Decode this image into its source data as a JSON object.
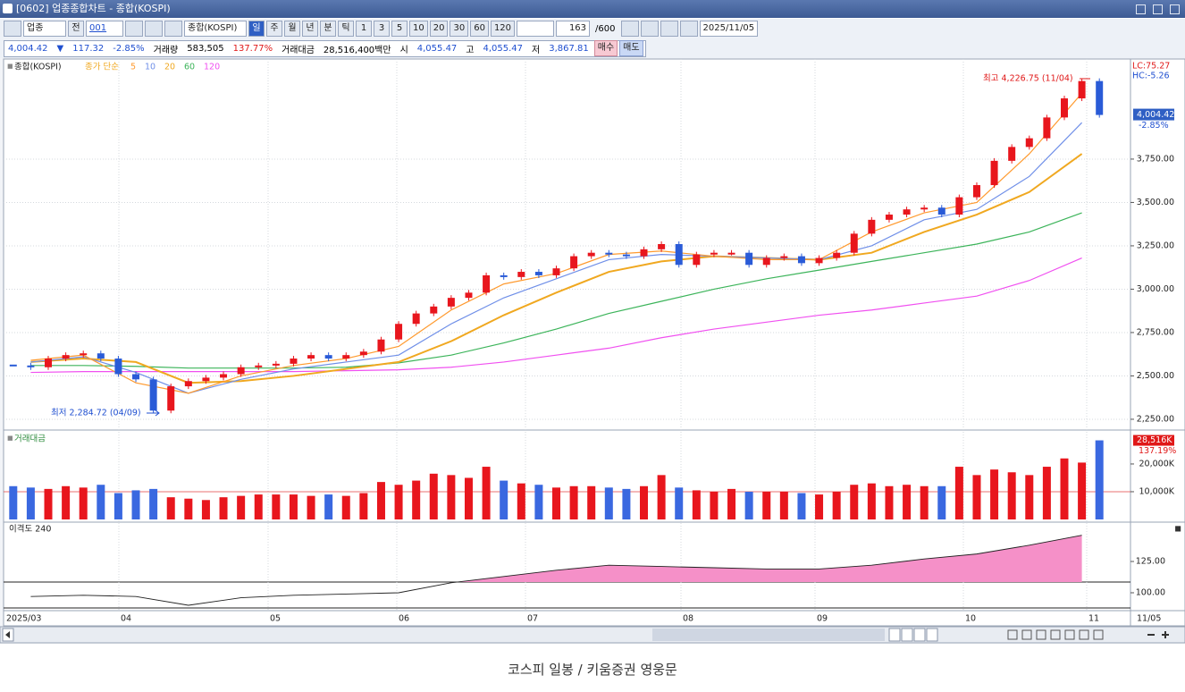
{
  "window": {
    "title": "[0602] 업종종합차트 - 종합(KOSPI)"
  },
  "toolbar": {
    "market": "업종",
    "scope": "전",
    "code": "001",
    "name": "종합(KOSPI)",
    "periods": [
      "일",
      "주",
      "월",
      "년",
      "분",
      "틱"
    ],
    "intervals": [
      "1",
      "3",
      "5",
      "10",
      "20",
      "30",
      "60",
      "120"
    ],
    "count": "163",
    "max": "/600",
    "date": "2025/11/05"
  },
  "quote": {
    "last": "4,004.42",
    "arrow": "▼",
    "change": "117.32",
    "rate": "-2.85%",
    "volume_label": "거래량",
    "volume": "583,505",
    "volume_rate": "137.77%",
    "amount_label": "거래대금",
    "amount": "28,516,400백만",
    "open_label": "시",
    "open": "4,055.47",
    "high_label": "고",
    "high": "4,055.47",
    "low_label": "저",
    "low": "3,867.81",
    "buy": "매수",
    "sell": "매도"
  },
  "chart_data": [
    {
      "type": "candlestick",
      "title": "종합(KOSPI)",
      "ma_label": "종가 단순",
      "values": [
        2560,
        2550,
        2600,
        2620,
        2630,
        2600,
        2510,
        2480,
        2300,
        2440,
        2470,
        2490,
        2510,
        2550,
        2560,
        2570,
        2600,
        2620,
        2600,
        2620,
        2640,
        2710,
        2800,
        2860,
        2900,
        2950,
        2980,
        3080,
        3070,
        3100,
        3080,
        3120,
        3190,
        3210,
        3200,
        3190,
        3230,
        3260,
        3140,
        3200,
        3210,
        3210,
        3140,
        3180,
        3190,
        3150,
        3180,
        3210,
        3320,
        3400,
        3430,
        3460,
        3470,
        3430,
        3530,
        3600,
        3740,
        3820,
        3870,
        3990,
        4100,
        4200,
        4004.42
      ],
      "up_color": "#e8161d",
      "down_color": "#2a5bd7",
      "series": [
        {
          "name": "5",
          "color": "#ff9a2e",
          "values": [
            2590,
            2620,
            2460,
            2400,
            2500,
            2560,
            2600,
            2670,
            2880,
            3030,
            3090,
            3200,
            3220,
            3190,
            3170,
            3170,
            3330,
            3440,
            3500,
            3780,
            4130
          ]
        },
        {
          "name": "10",
          "color": "#6f8fe8",
          "values": [
            2580,
            2610,
            2520,
            2400,
            2480,
            2540,
            2580,
            2620,
            2800,
            2950,
            3060,
            3170,
            3200,
            3190,
            3180,
            3170,
            3250,
            3400,
            3460,
            3650,
            3960
          ]
        },
        {
          "name": "20",
          "color": "#f0a820",
          "values": [
            2580,
            2600,
            2580,
            2460,
            2470,
            2500,
            2540,
            2580,
            2700,
            2850,
            2980,
            3100,
            3160,
            3190,
            3180,
            3170,
            3210,
            3330,
            3430,
            3560,
            3780
          ]
        },
        {
          "name": "60",
          "color": "#3cb45a",
          "values": [
            2560,
            2560,
            2555,
            2545,
            2545,
            2545,
            2550,
            2575,
            2620,
            2690,
            2770,
            2860,
            2930,
            3000,
            3060,
            3110,
            3160,
            3210,
            3260,
            3330,
            3440
          ]
        },
        {
          "name": "120",
          "color": "#f050f0",
          "values": [
            2520,
            2525,
            2525,
            2525,
            2525,
            2525,
            2530,
            2535,
            2550,
            2580,
            2620,
            2660,
            2720,
            2770,
            2810,
            2850,
            2880,
            2920,
            2960,
            3050,
            3180
          ]
        }
      ],
      "ylim": [
        2193,
        4327
      ],
      "yticks": [
        {
          "value": 3750,
          "label": "3,750.00"
        },
        {
          "value": 3500,
          "label": "3,500.00"
        },
        {
          "value": 3250,
          "label": "3,250.00"
        },
        {
          "value": 3000,
          "label": "3,000.00"
        },
        {
          "value": 2750,
          "label": "2,750.00"
        },
        {
          "value": 2500,
          "label": "2,500.00"
        },
        {
          "value": 2250,
          "label": "2,250.00"
        }
      ],
      "grid": true,
      "x_labels": [
        "2025/03",
        "04",
        "05",
        "06",
        "07",
        "08",
        "09",
        "10",
        "11"
      ],
      "end_label": "11/05",
      "annotations": {
        "high": "최고 4,226.75 (11/04)",
        "low": "최저 2,284.72 (04/09)",
        "lc": "LC:75.27",
        "hc": "HC:-5.26",
        "last": "4,004.42",
        "change": "-2.85%"
      }
    },
    {
      "type": "bar",
      "title": "거래대금",
      "values": [
        12000,
        11500,
        11000,
        12000,
        11500,
        12500,
        9500,
        10500,
        11000,
        8000,
        7500,
        7000,
        8000,
        8500,
        9000,
        9000,
        9000,
        8500,
        9000,
        8500,
        9500,
        13500,
        12500,
        14000,
        16500,
        16000,
        15000,
        19000,
        14000,
        13000,
        12500,
        11500,
        12000,
        12000,
        11500,
        11000,
        12000,
        16000,
        11500,
        10500,
        10000,
        11000,
        10000,
        10000,
        10000,
        9500,
        9000,
        10000,
        12500,
        13000,
        12000,
        12500,
        12000,
        12000,
        19000,
        16000,
        18000,
        17000,
        16000,
        19000,
        22000,
        20500,
        28516
      ],
      "ylim": [
        0,
        30300
      ],
      "yticks": [
        {
          "value": 20000,
          "label": "20,000K"
        },
        {
          "value": 10000,
          "label": "10,000K"
        }
      ],
      "last_label": "28,516K",
      "ratio": "137.19%"
    },
    {
      "type": "area",
      "title": "이격도 240",
      "values": [
        97,
        98,
        97,
        90,
        96,
        98,
        99,
        100,
        108,
        113,
        118,
        122,
        121,
        120,
        119,
        119,
        122,
        127,
        131,
        138,
        146
      ],
      "color": "#f590c8",
      "line_color": "#222222",
      "ylim": [
        85.7,
        153.6
      ],
      "yticks": [
        {
          "value": 125,
          "label": "125.00"
        },
        {
          "value": 100,
          "label": "100.00"
        }
      ]
    }
  ],
  "caption": "코스피 일봉 / 키움증권 영웅문"
}
